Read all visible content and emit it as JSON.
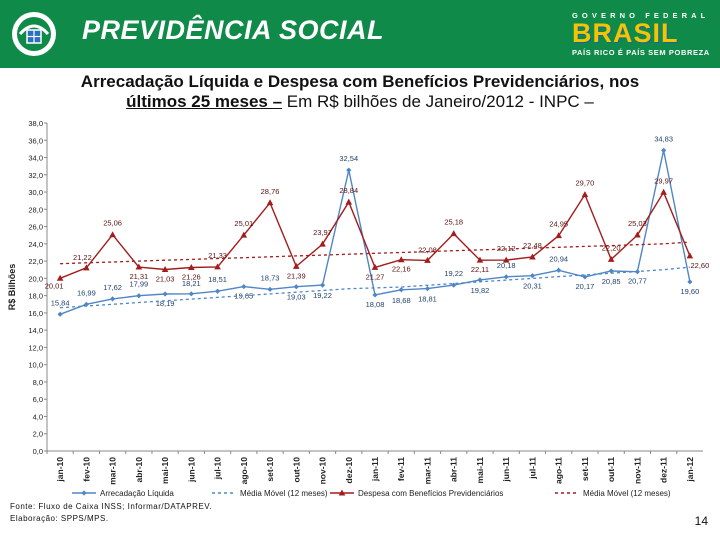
{
  "header": {
    "org_title": "PREVIDÊNCIA SOCIAL",
    "gov_label": "GOVERNO FEDERAL",
    "brasil_word": "BRASIL",
    "slogan": "PAÍS RICO É PAÍS SEM POBREZA",
    "logo_icon": "previdencia-logo-icon",
    "colors": {
      "banner": "#0f8a48",
      "brasil_blue": "#2b8fd6",
      "brasil_yellow": "#f2c500",
      "brasil_green": "#1a9e4c"
    }
  },
  "slide": {
    "title_part1": "Arrecadação Líquida e Despesa com Benefícios Previdenciários, nos",
    "title_part2": "últimos 25 meses –",
    "title_part3": " Em R$ bilhões de Janeiro/2012 - INPC –",
    "source_line1": "Fonte: Fluxo de Caixa INSS; Informar/DATAPREV.",
    "source_line2": "Elaboração: SPPS/MPS.",
    "page_number": "14"
  },
  "chart_data": {
    "type": "line",
    "title": "",
    "xlabel": "",
    "ylabel": "R$ Bilhões",
    "ylim": [
      0,
      38
    ],
    "ytick_step": 2,
    "ytick_labels": [
      "0,0",
      "2,0",
      "4,0",
      "6,0",
      "8,0",
      "10,0",
      "12,0",
      "14,0",
      "16,0",
      "18,0",
      "20,0",
      "22,0",
      "24,0",
      "26,0",
      "28,0",
      "30,0",
      "32,0",
      "34,0",
      "36,0",
      "38,0"
    ],
    "categories": [
      "jan-10",
      "fev-10",
      "mar-10",
      "abr-10",
      "mai-10",
      "jun-10",
      "jul-10",
      "ago-10",
      "set-10",
      "out-10",
      "nov-10",
      "dez-10",
      "jan-11",
      "fev-11",
      "mar-11",
      "abr-11",
      "mai-11",
      "jun-11",
      "jul-11",
      "ago-11",
      "set-11",
      "out-11",
      "nov-11",
      "dez-11",
      "jan-12"
    ],
    "series": [
      {
        "name": "Arrecadação Líquida",
        "color": "#4f86c6",
        "marker": "diamond",
        "values": [
          15.84,
          16.99,
          17.62,
          17.99,
          18.19,
          18.21,
          18.51,
          19.05,
          18.73,
          19.03,
          19.22,
          32.54,
          18.08,
          18.68,
          18.81,
          19.22,
          19.82,
          20.18,
          20.31,
          20.94,
          20.17,
          20.85,
          20.77,
          34.83,
          19.6
        ],
        "labels": [
          "15,84",
          "16,99",
          "17,62",
          "17,99",
          "18,19",
          "18,21",
          "18,51",
          "19,05",
          "18,73",
          "19,03",
          "19,22",
          "32,54",
          "18,08",
          "18,68",
          "18,81",
          "19,22",
          "19,82",
          "20,18",
          "20,31",
          "20,94",
          "20,17",
          "20,85",
          "20,77",
          "34,83",
          "19,60"
        ]
      },
      {
        "name": "Média Móvel (12 meses)",
        "color": "#4f86c6",
        "dashed": true,
        "values": [
          16.6,
          16.8,
          17.0,
          17.2,
          17.4,
          17.6,
          17.8,
          18.0,
          18.2,
          18.4,
          18.6,
          18.8,
          18.9,
          19.0,
          19.2,
          19.4,
          19.6,
          19.8,
          20.0,
          20.2,
          20.4,
          20.6,
          20.8,
          21.0,
          21.3
        ]
      },
      {
        "name": "Despesa com Benefícios Previdenciários",
        "color": "#a31d1d",
        "marker": "triangle",
        "values": [
          20.01,
          21.22,
          25.06,
          21.31,
          21.03,
          21.26,
          21.33,
          25.01,
          28.76,
          21.39,
          23.97,
          28.84,
          21.27,
          22.16,
          22.08,
          25.18,
          22.11,
          22.12,
          22.48,
          24.95,
          29.7,
          22.2,
          25.03,
          29.97,
          22.6
        ],
        "labels": [
          "20,01",
          "21,22",
          "25,06",
          "21,31",
          "21,03",
          "21,26",
          "21,33",
          "25,01",
          "28,76",
          "21,39",
          "23,97",
          "28,84",
          "21,27",
          "22,16",
          "22,08",
          "25,18",
          "22,11",
          "22,12",
          "22,48",
          "24,95",
          "29,70",
          "22,20",
          "25,03",
          "29,97",
          "22,60"
        ]
      },
      {
        "name": "Média Móvel (12 meses)",
        "color": "#a31d1d",
        "dashed": true,
        "values": [
          21.7,
          21.8,
          21.9,
          22.0,
          22.1,
          22.2,
          22.3,
          22.4,
          22.5,
          22.6,
          22.7,
          22.8,
          22.9,
          23.0,
          23.1,
          23.2,
          23.3,
          23.4,
          23.5,
          23.6,
          23.7,
          23.8,
          23.9,
          24.0,
          24.2
        ]
      }
    ],
    "legend": [
      "Arrecadação Líquida",
      "Média Móvel (12 meses)",
      "Despesa com Benefícios Previdenciários",
      "Média Móvel (12 meses)"
    ],
    "legend_position": "bottom",
    "grid": false
  }
}
